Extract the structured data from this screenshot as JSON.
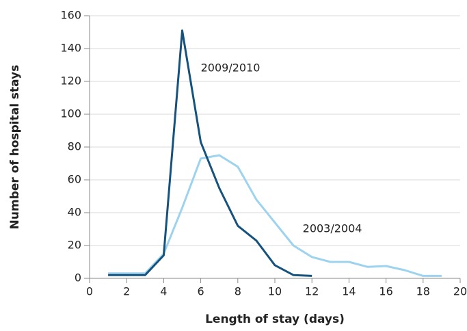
{
  "chart_data": {
    "type": "line",
    "x_label": "Length of stay (days)",
    "y_label": "Number of hospital stays",
    "xlim": [
      0,
      20
    ],
    "xticks": [
      0,
      2,
      4,
      6,
      8,
      10,
      12,
      14,
      16,
      18,
      20
    ],
    "ylim": [
      0,
      160
    ],
    "yticks": [
      0,
      20,
      40,
      60,
      80,
      100,
      120,
      140,
      160
    ],
    "grid": true,
    "series": [
      {
        "name": "2003/2004",
        "color": "#9dd3ee",
        "x": [
          1,
          2,
          3,
          4,
          5,
          6,
          7,
          8,
          9,
          10,
          11,
          12,
          13,
          14,
          15,
          16,
          17,
          18,
          19
        ],
        "values": [
          3,
          3,
          3,
          15,
          43,
          73,
          75,
          68,
          48,
          34,
          20,
          13,
          10,
          10,
          7,
          7.5,
          5,
          1.5,
          1.5
        ],
        "label_pos": [
          11.5,
          30
        ]
      },
      {
        "name": "2009/2010",
        "color": "#16527e",
        "x": [
          1,
          2,
          3,
          4,
          5,
          6,
          7,
          8,
          9,
          10,
          11,
          12
        ],
        "values": [
          2,
          2,
          2,
          14,
          151,
          83,
          55,
          32,
          23,
          8,
          2,
          1.5
        ],
        "label_pos": [
          6,
          128
        ]
      }
    ]
  }
}
